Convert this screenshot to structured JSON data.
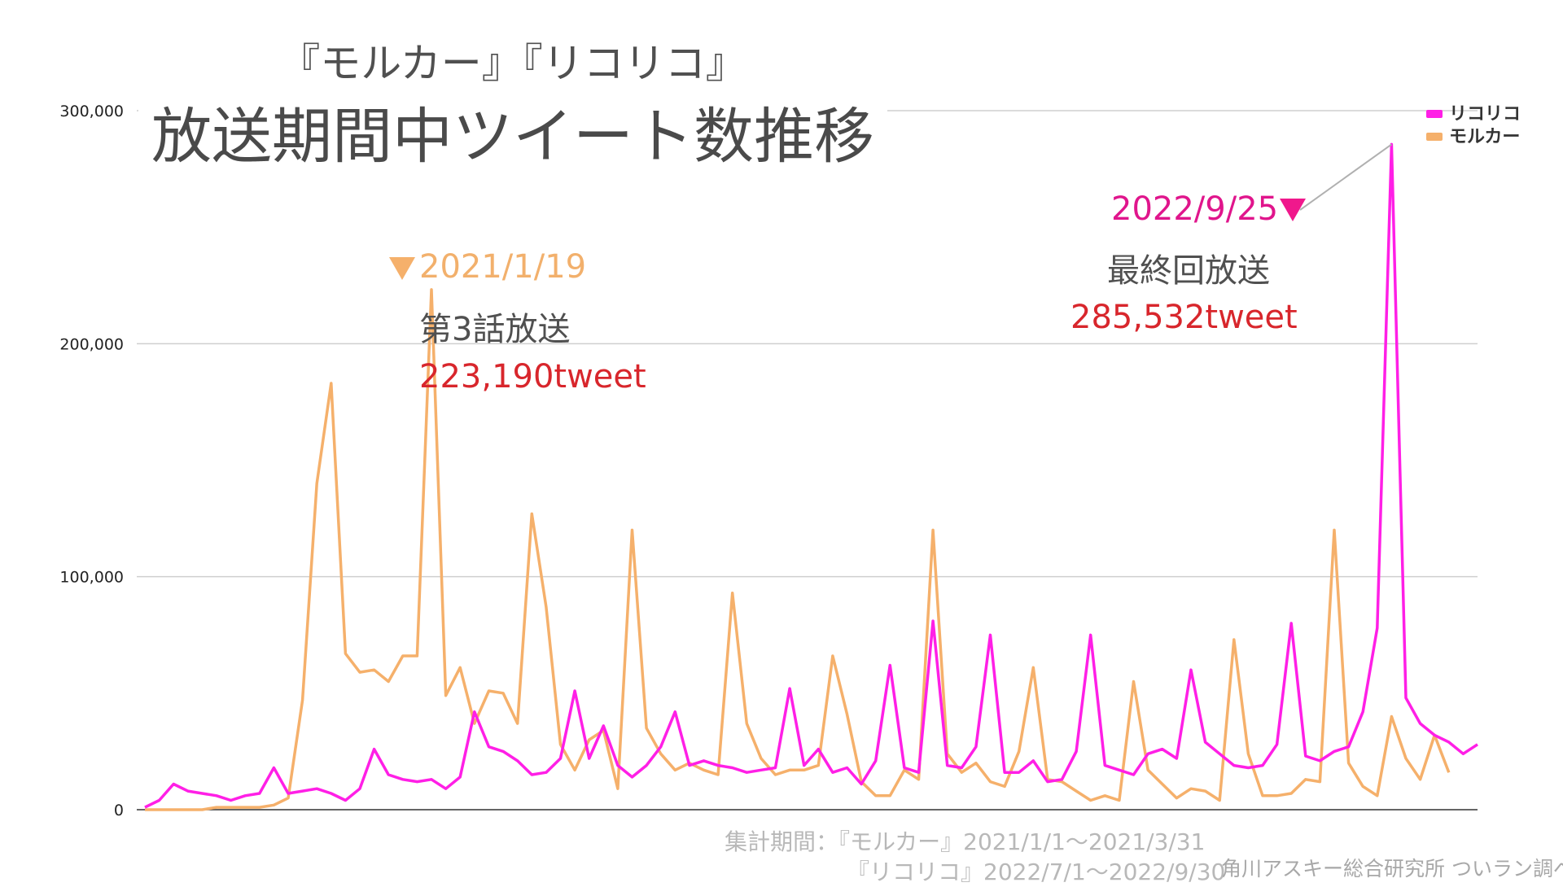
{
  "chart_data": {
    "type": "line",
    "title": "『モルカー』『リコリコ』",
    "subtitle": "放送期間中ツイート数推移",
    "ylim": [
      0,
      300000
    ],
    "yticks": [
      "0",
      "100,000",
      "200,000",
      "300,000"
    ],
    "grid": true,
    "legend_position": "top-right",
    "series": [
      {
        "name": "リコリコ",
        "color": "#ff1fe6",
        "values": [
          1000,
          4000,
          11000,
          8000,
          7000,
          6000,
          4000,
          6000,
          7000,
          18000,
          7000,
          8000,
          9000,
          7000,
          4000,
          9000,
          26000,
          15000,
          13000,
          12000,
          13000,
          9000,
          14000,
          42000,
          27000,
          25000,
          21000,
          15000,
          16000,
          22000,
          51000,
          22000,
          36000,
          19000,
          14000,
          19000,
          27000,
          42000,
          19000,
          21000,
          19000,
          18000,
          16000,
          17000,
          18000,
          52000,
          19000,
          26000,
          16000,
          18000,
          11000,
          21000,
          62000,
          18000,
          16000,
          81000,
          19000,
          18000,
          27000,
          75000,
          16000,
          16000,
          21000,
          12000,
          13000,
          25000,
          75000,
          19000,
          17000,
          15000,
          24000,
          26000,
          22000,
          60000,
          29000,
          24000,
          19000,
          18000,
          19000,
          28000,
          80000,
          23000,
          21000,
          25000,
          27000,
          42000,
          78000,
          285532,
          48000,
          37000,
          32000,
          29000,
          24000,
          28000
        ]
      },
      {
        "name": "モルカー",
        "color": "#f5b06b",
        "values": [
          0,
          0,
          0,
          0,
          0,
          1000,
          1000,
          1000,
          1000,
          2000,
          5000,
          47000,
          140000,
          183000,
          67000,
          59000,
          60000,
          55000,
          66000,
          66000,
          223190,
          49000,
          61000,
          37000,
          51000,
          50000,
          37000,
          127000,
          87000,
          28000,
          17000,
          30000,
          34000,
          9000,
          120000,
          35000,
          24000,
          17000,
          20000,
          17000,
          15000,
          93000,
          37000,
          22000,
          15000,
          17000,
          17000,
          19000,
          66000,
          41000,
          12000,
          6000,
          6000,
          17000,
          13000,
          120000,
          24000,
          16000,
          20000,
          12000,
          10000,
          25000,
          61000,
          13000,
          12000,
          8000,
          4000,
          6000,
          4000,
          55000,
          17000,
          11000,
          5000,
          9000,
          8000,
          4000,
          73000,
          24000,
          6000,
          6000,
          7000,
          13000,
          12000,
          120000,
          20000,
          10000,
          6000,
          40000,
          22000,
          13000,
          32000,
          16000
        ]
      }
    ],
    "annotations": [
      {
        "date": "2021/1/19",
        "episode": "第3話放送",
        "value_label": "223,190tweet"
      },
      {
        "date": "2022/9/25",
        "episode": "最終回放送",
        "value_label": "285,532tweet"
      }
    ]
  },
  "footer": {
    "period_line1": "集計期間：『モルカー』2021/1/1〜2021/3/31",
    "period_line2": "『リコリコ』2022/7/1〜2022/9/30",
    "source": "角川アスキー総合研究所 ついラン調べ"
  }
}
